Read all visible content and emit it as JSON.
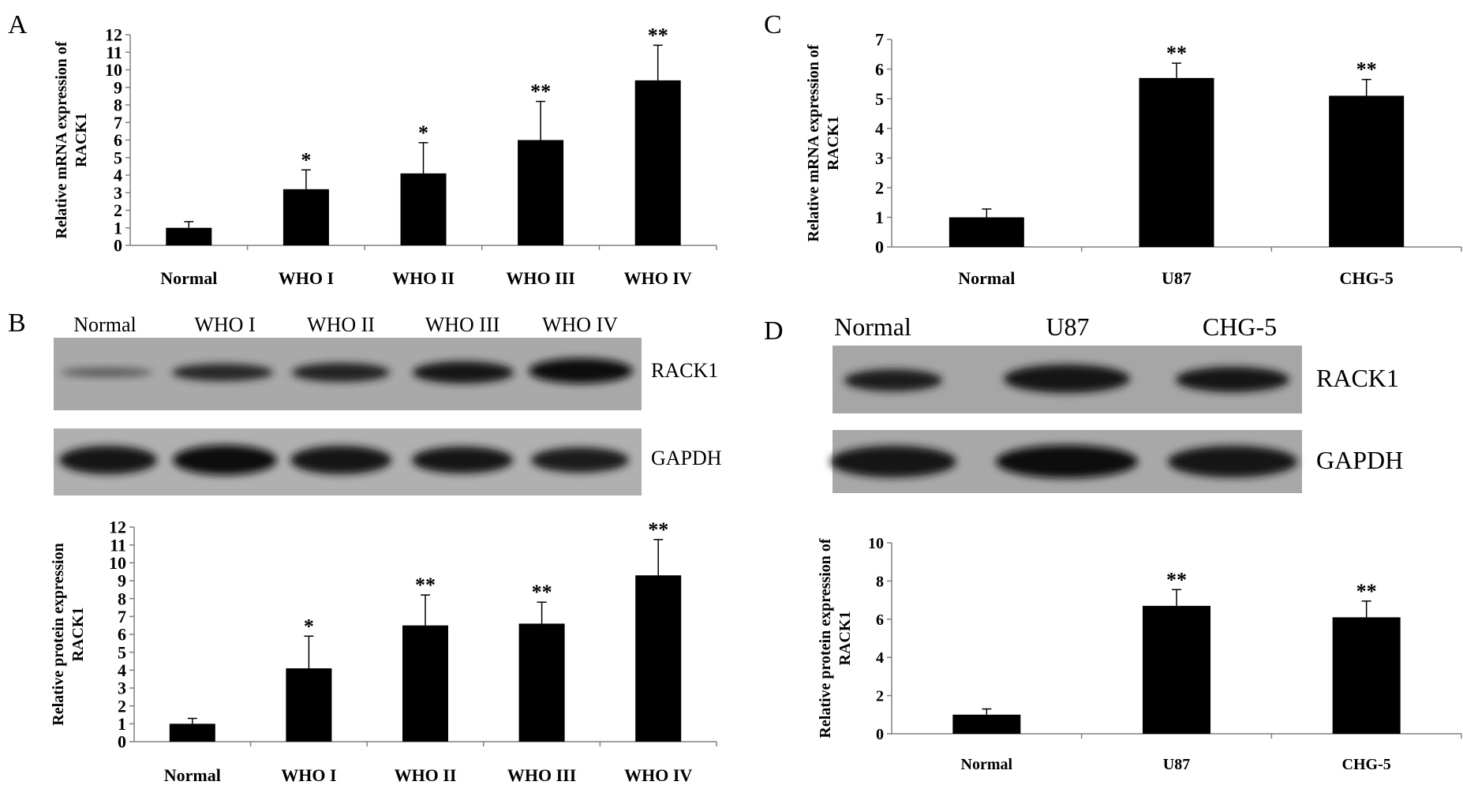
{
  "panels": {
    "A": {
      "letter": "A"
    },
    "B": {
      "letter": "B",
      "blot_labels": [
        "RACK1",
        "GAPDH"
      ],
      "lane_labels": [
        "Normal",
        "WHO I",
        "WHO II",
        "WHO III",
        "WHO IV"
      ]
    },
    "C": {
      "letter": "C"
    },
    "D": {
      "letter": "D",
      "blot_labels": [
        "RACK1",
        "GAPDH"
      ],
      "lane_labels": [
        "Normal",
        "U87",
        "CHG-5"
      ]
    }
  },
  "colors": {
    "bar": "#000000",
    "axis": "#808080",
    "blot_background": "#a8a8a8",
    "band": "#141414"
  },
  "chart_data": [
    {
      "id": "A",
      "type": "bar",
      "categories": [
        "Normal",
        "WHO I",
        "WHO II",
        "WHO III",
        "WHO IV"
      ],
      "values": [
        1.0,
        3.2,
        4.1,
        6.0,
        9.4
      ],
      "errors": [
        0.35,
        1.1,
        1.75,
        2.2,
        2.0
      ],
      "significance": [
        "",
        "*",
        "*",
        "**",
        "**"
      ],
      "ylabel": "Relative mRNA expression of RACK1",
      "ylim": [
        0,
        12
      ],
      "yticks": [
        0,
        1,
        2,
        3,
        4,
        5,
        6,
        7,
        8,
        9,
        10,
        11,
        12
      ]
    },
    {
      "id": "C",
      "type": "bar",
      "categories": [
        "Normal",
        "U87",
        "CHG-5"
      ],
      "values": [
        1.0,
        5.7,
        5.1
      ],
      "errors": [
        0.28,
        0.5,
        0.55
      ],
      "significance": [
        "",
        "**",
        "**"
      ],
      "ylabel": "Relative mRNA expression of RACK1",
      "ylim": [
        0,
        7
      ],
      "yticks": [
        0,
        1,
        2,
        3,
        4,
        5,
        6,
        7
      ]
    },
    {
      "id": "B",
      "type": "bar",
      "categories": [
        "Normal",
        "WHO I",
        "WHO II",
        "WHO III",
        "WHO IV"
      ],
      "values": [
        1.0,
        4.1,
        6.5,
        6.6,
        9.3
      ],
      "errors": [
        0.3,
        1.8,
        1.7,
        1.2,
        2.0
      ],
      "significance": [
        "",
        "*",
        "**",
        "**",
        "**"
      ],
      "ylabel": "Relative protein expression RACK1",
      "ylim": [
        0,
        12
      ],
      "yticks": [
        0,
        1,
        2,
        3,
        4,
        5,
        6,
        7,
        8,
        9,
        10,
        11,
        12
      ]
    },
    {
      "id": "D",
      "type": "bar",
      "categories": [
        "Normal",
        "U87",
        "CHG-5"
      ],
      "values": [
        1.0,
        6.7,
        6.1
      ],
      "errors": [
        0.3,
        0.85,
        0.85
      ],
      "significance": [
        "",
        "**",
        "**"
      ],
      "ylabel": "Relative protein expression of RACK1",
      "ylim": [
        0,
        10
      ],
      "yticks": [
        0,
        2,
        4,
        6,
        8,
        10
      ]
    }
  ]
}
